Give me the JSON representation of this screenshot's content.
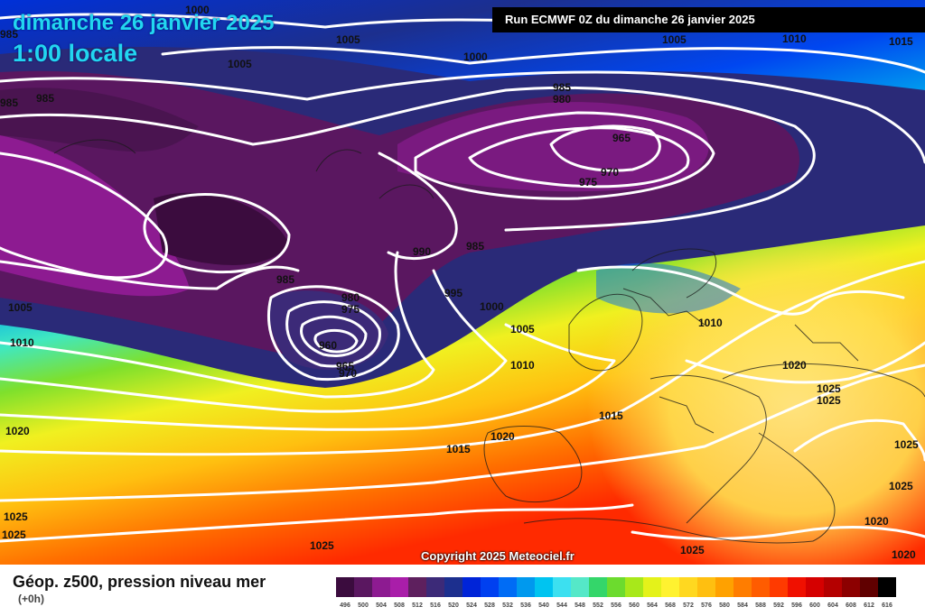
{
  "header": {
    "date": "dimanche 26 janvier 2025",
    "time": "1:00 locale",
    "run": "Run ECMWF 0Z du dimanche 26 janvier 2025"
  },
  "copyright": "Copyright 2025 Meteociel.fr",
  "legend": {
    "title": "Géop. z500, pression niveau mer",
    "subtitle": "(+0h)",
    "steps": [
      {
        "label": "496",
        "color": "#3b0c3e"
      },
      {
        "label": "500",
        "color": "#5a1760"
      },
      {
        "label": "504",
        "color": "#8d1b91"
      },
      {
        "label": "508",
        "color": "#a91ea9"
      },
      {
        "label": "512",
        "color": "#5e205e"
      },
      {
        "label": "516",
        "color": "#3c2a78"
      },
      {
        "label": "520",
        "color": "#1c2f8e"
      },
      {
        "label": "524",
        "color": "#0024d8"
      },
      {
        "label": "528",
        "color": "#0040f0"
      },
      {
        "label": "532",
        "color": "#006cf5"
      },
      {
        "label": "536",
        "color": "#0099ee"
      },
      {
        "label": "540",
        "color": "#00c4f0"
      },
      {
        "label": "544",
        "color": "#3ce0f0"
      },
      {
        "label": "548",
        "color": "#55e8c8"
      },
      {
        "label": "552",
        "color": "#34d66a"
      },
      {
        "label": "556",
        "color": "#6cdb2e"
      },
      {
        "label": "560",
        "color": "#a8e81a"
      },
      {
        "label": "564",
        "color": "#e4f21a"
      },
      {
        "label": "568",
        "color": "#fff230"
      },
      {
        "label": "572",
        "color": "#ffd820"
      },
      {
        "label": "576",
        "color": "#ffbf10"
      },
      {
        "label": "580",
        "color": "#ffa100"
      },
      {
        "label": "584",
        "color": "#ff7d00"
      },
      {
        "label": "588",
        "color": "#ff5c00"
      },
      {
        "label": "592",
        "color": "#ff3a00"
      },
      {
        "label": "596",
        "color": "#f01000"
      },
      {
        "label": "600",
        "color": "#d50000"
      },
      {
        "label": "604",
        "color": "#b40000"
      },
      {
        "label": "608",
        "color": "#8c0000"
      },
      {
        "label": "612",
        "color": "#600000"
      },
      {
        "label": "616",
        "color": "#000000"
      }
    ]
  },
  "lows": {
    "low_1": "965",
    "low_2": "960"
  },
  "isobar_labels": [
    {
      "id": "a",
      "text": "1000"
    },
    {
      "id": "b",
      "text": "1005"
    },
    {
      "id": "c",
      "text": "1005"
    },
    {
      "id": "d",
      "text": "1000"
    },
    {
      "id": "e",
      "text": "1005"
    },
    {
      "id": "f",
      "text": "1010"
    },
    {
      "id": "g",
      "text": "1015"
    },
    {
      "id": "h",
      "text": "985"
    },
    {
      "id": "i",
      "text": "985"
    },
    {
      "id": "j",
      "text": "985"
    },
    {
      "id": "k",
      "text": "980"
    },
    {
      "id": "l",
      "text": "965"
    },
    {
      "id": "m",
      "text": "970"
    },
    {
      "id": "n",
      "text": "975"
    },
    {
      "id": "o",
      "text": "990"
    },
    {
      "id": "p",
      "text": "985"
    },
    {
      "id": "q",
      "text": "985"
    },
    {
      "id": "r",
      "text": "980"
    },
    {
      "id": "s",
      "text": "975"
    },
    {
      "id": "t",
      "text": "960"
    },
    {
      "id": "u",
      "text": "965"
    },
    {
      "id": "v",
      "text": "970"
    },
    {
      "id": "w",
      "text": "995"
    },
    {
      "id": "x",
      "text": "1000"
    },
    {
      "id": "y",
      "text": "1005"
    },
    {
      "id": "z",
      "text": "1010"
    },
    {
      "id": "aa",
      "text": "1010"
    },
    {
      "id": "ab",
      "text": "1015"
    },
    {
      "id": "ac",
      "text": "1015"
    },
    {
      "id": "ad",
      "text": "1020"
    },
    {
      "id": "ae",
      "text": "1020"
    },
    {
      "id": "af",
      "text": "1020"
    },
    {
      "id": "ag",
      "text": "1025"
    },
    {
      "id": "ah",
      "text": "1025"
    },
    {
      "id": "ai",
      "text": "1025"
    },
    {
      "id": "aj",
      "text": "1025"
    },
    {
      "id": "ak",
      "text": "1025"
    },
    {
      "id": "al",
      "text": "1025"
    },
    {
      "id": "am",
      "text": "1025"
    },
    {
      "id": "an",
      "text": "1020"
    },
    {
      "id": "ao",
      "text": "1020"
    },
    {
      "id": "ap",
      "text": "1005"
    },
    {
      "id": "aq",
      "text": "1010"
    },
    {
      "id": "ar",
      "text": "1025"
    },
    {
      "id": "as",
      "text": "985"
    }
  ]
}
